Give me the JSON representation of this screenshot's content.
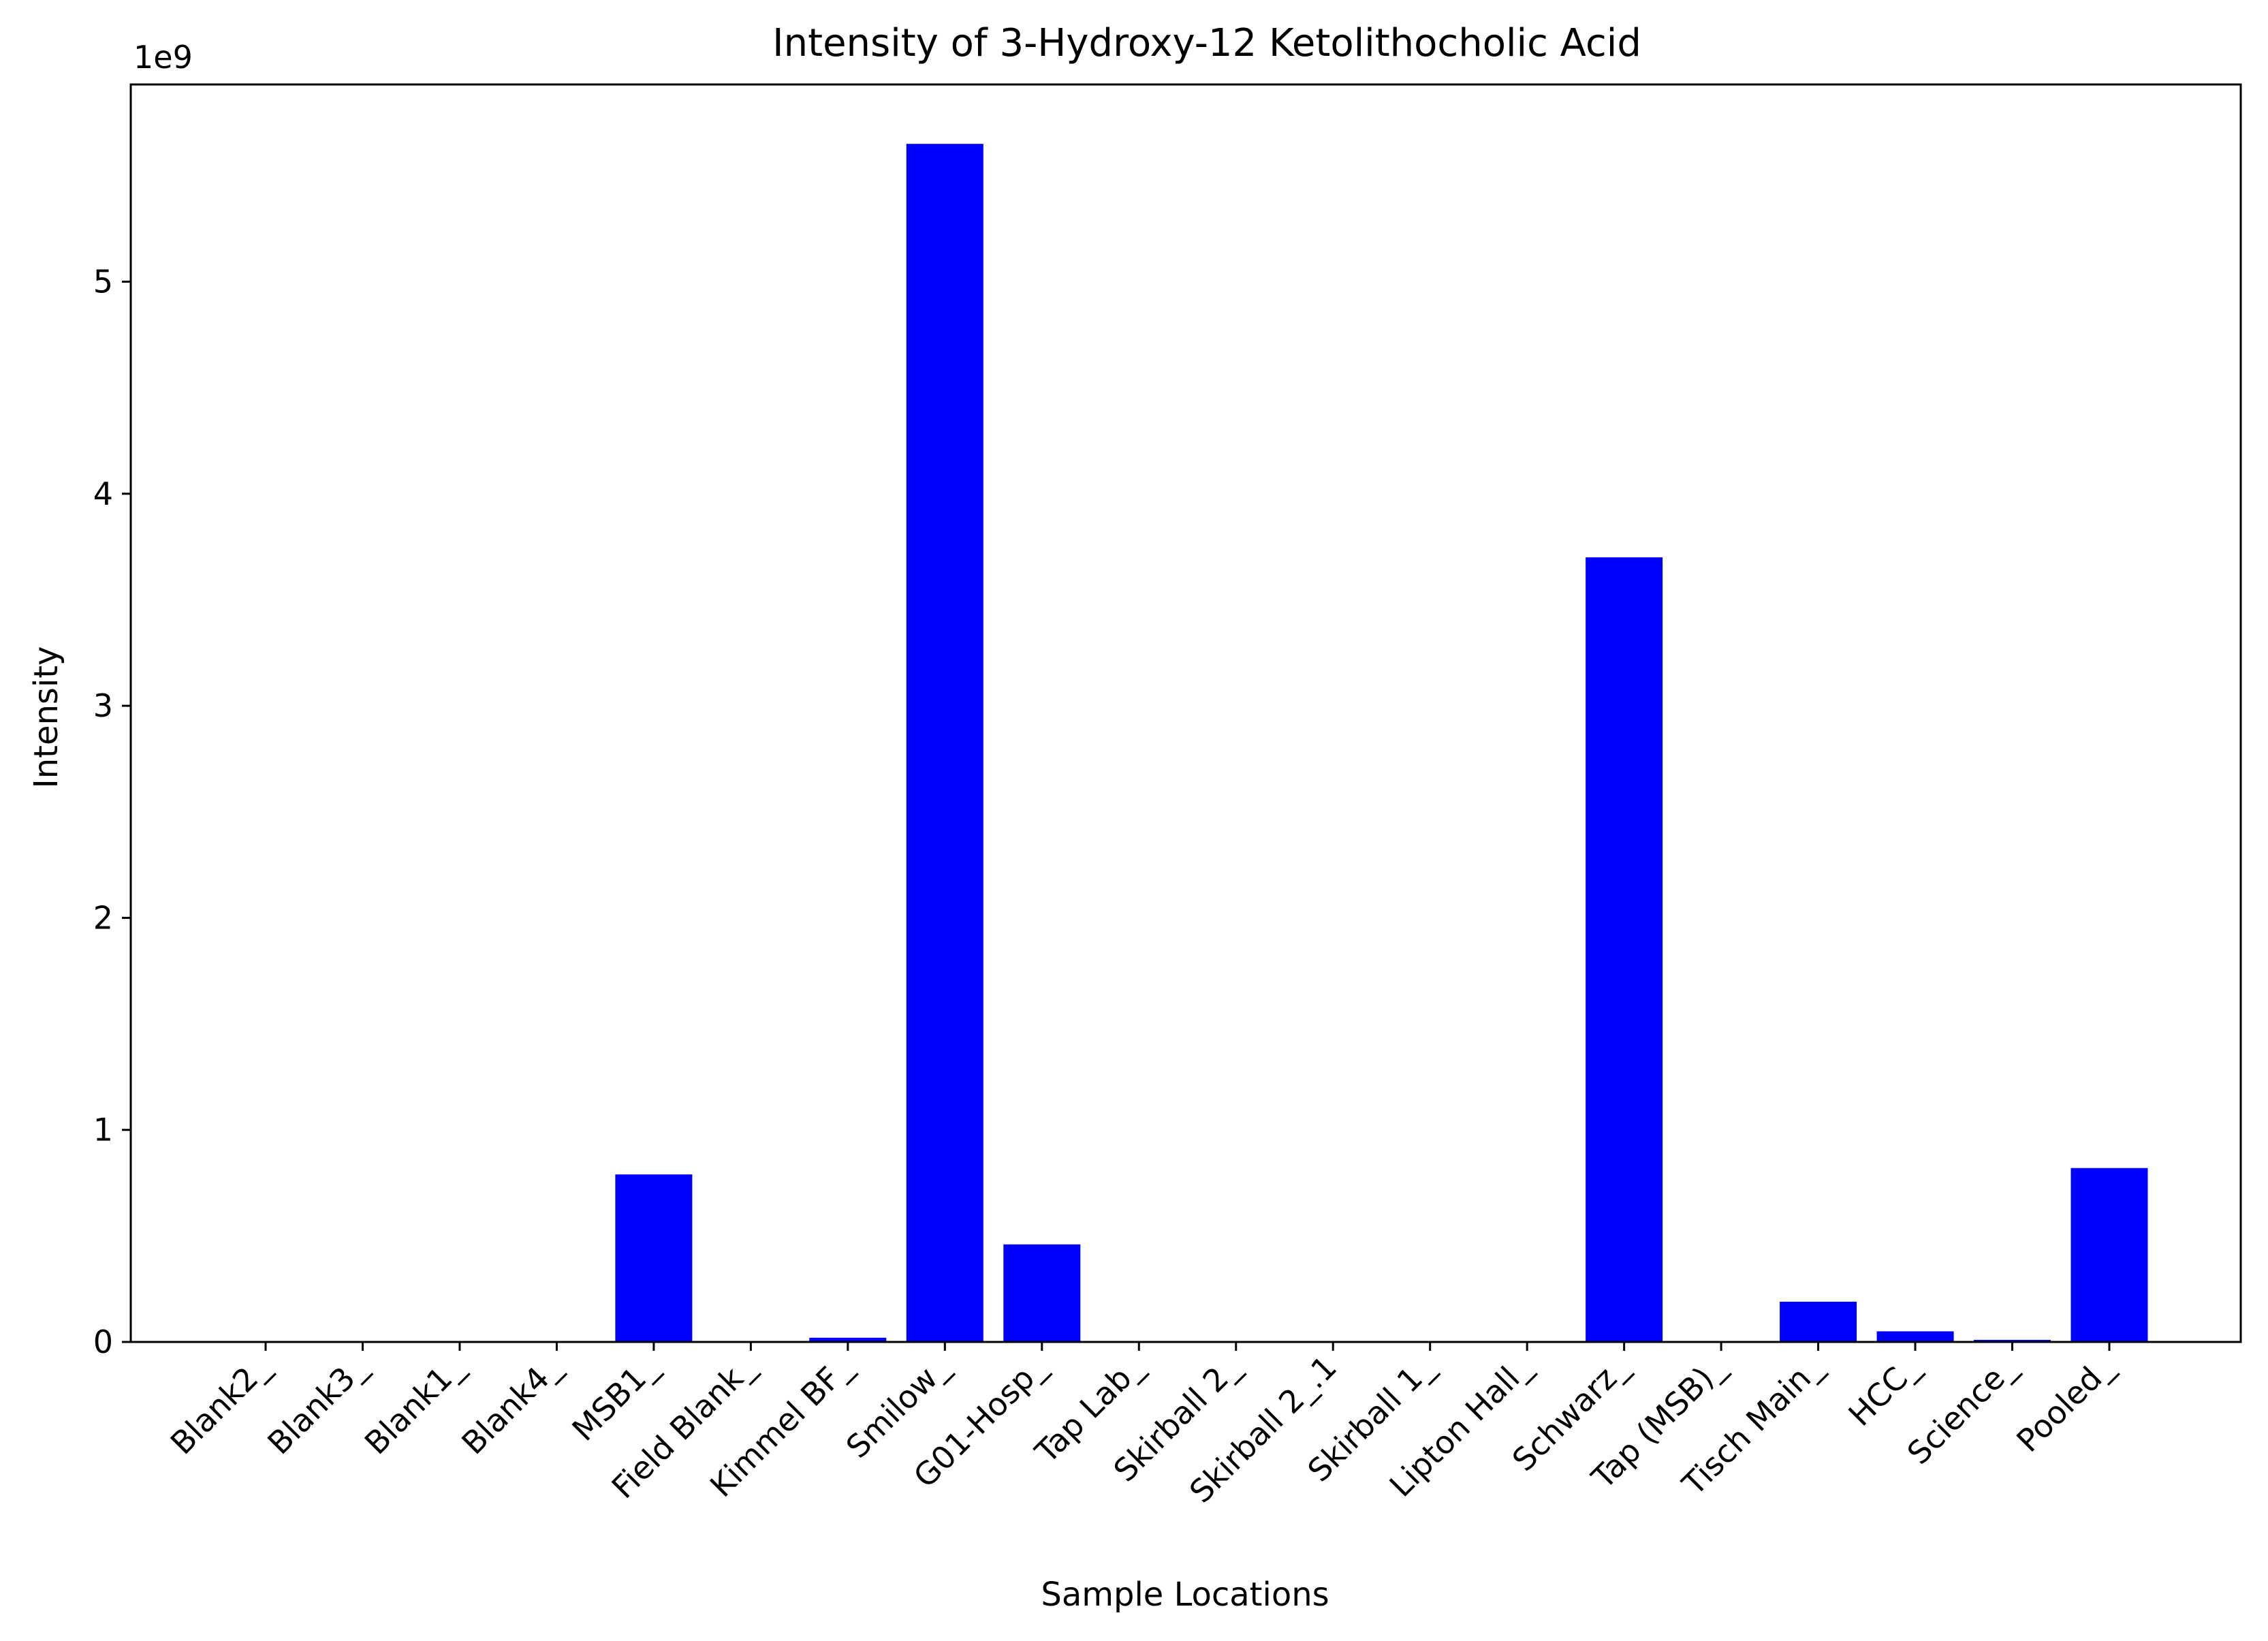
{
  "chart_data": {
    "type": "bar",
    "title": "Intensity of 3-Hydroxy-12 Ketolithocholic Acid",
    "xlabel": "Sample Locations",
    "ylabel": "Intensity",
    "y_multiplier_label": "1e9",
    "ylim": [
      0,
      5.93
    ],
    "yticks": [
      0,
      1,
      2,
      3,
      4,
      5
    ],
    "ytick_labels": [
      "0",
      "1",
      "2",
      "3",
      "4",
      "5"
    ],
    "grid": false,
    "bar_color": "#0000ff",
    "categories": [
      "Blank2_",
      "Blank3_",
      "Blank1_",
      "Blank4_",
      "MSB1_",
      "Field Blank_",
      "Kimmel BF_",
      "Smilow_",
      "G01-Hosp_",
      "Tap Lab_",
      "Skirball 2_",
      "Skirball 2_.1",
      "Skirball 1_",
      "Lipton Hall_",
      "Schwarz_",
      "Tap (MSB)_",
      "Tisch Main_",
      "HCC_",
      "Science_",
      "Pooled_"
    ],
    "values": [
      0,
      0,
      0,
      0,
      0.79,
      0,
      0.02,
      5.65,
      0.46,
      0,
      0,
      0,
      0,
      0,
      3.7,
      0,
      0.19,
      0.05,
      0.01,
      0.82
    ]
  }
}
